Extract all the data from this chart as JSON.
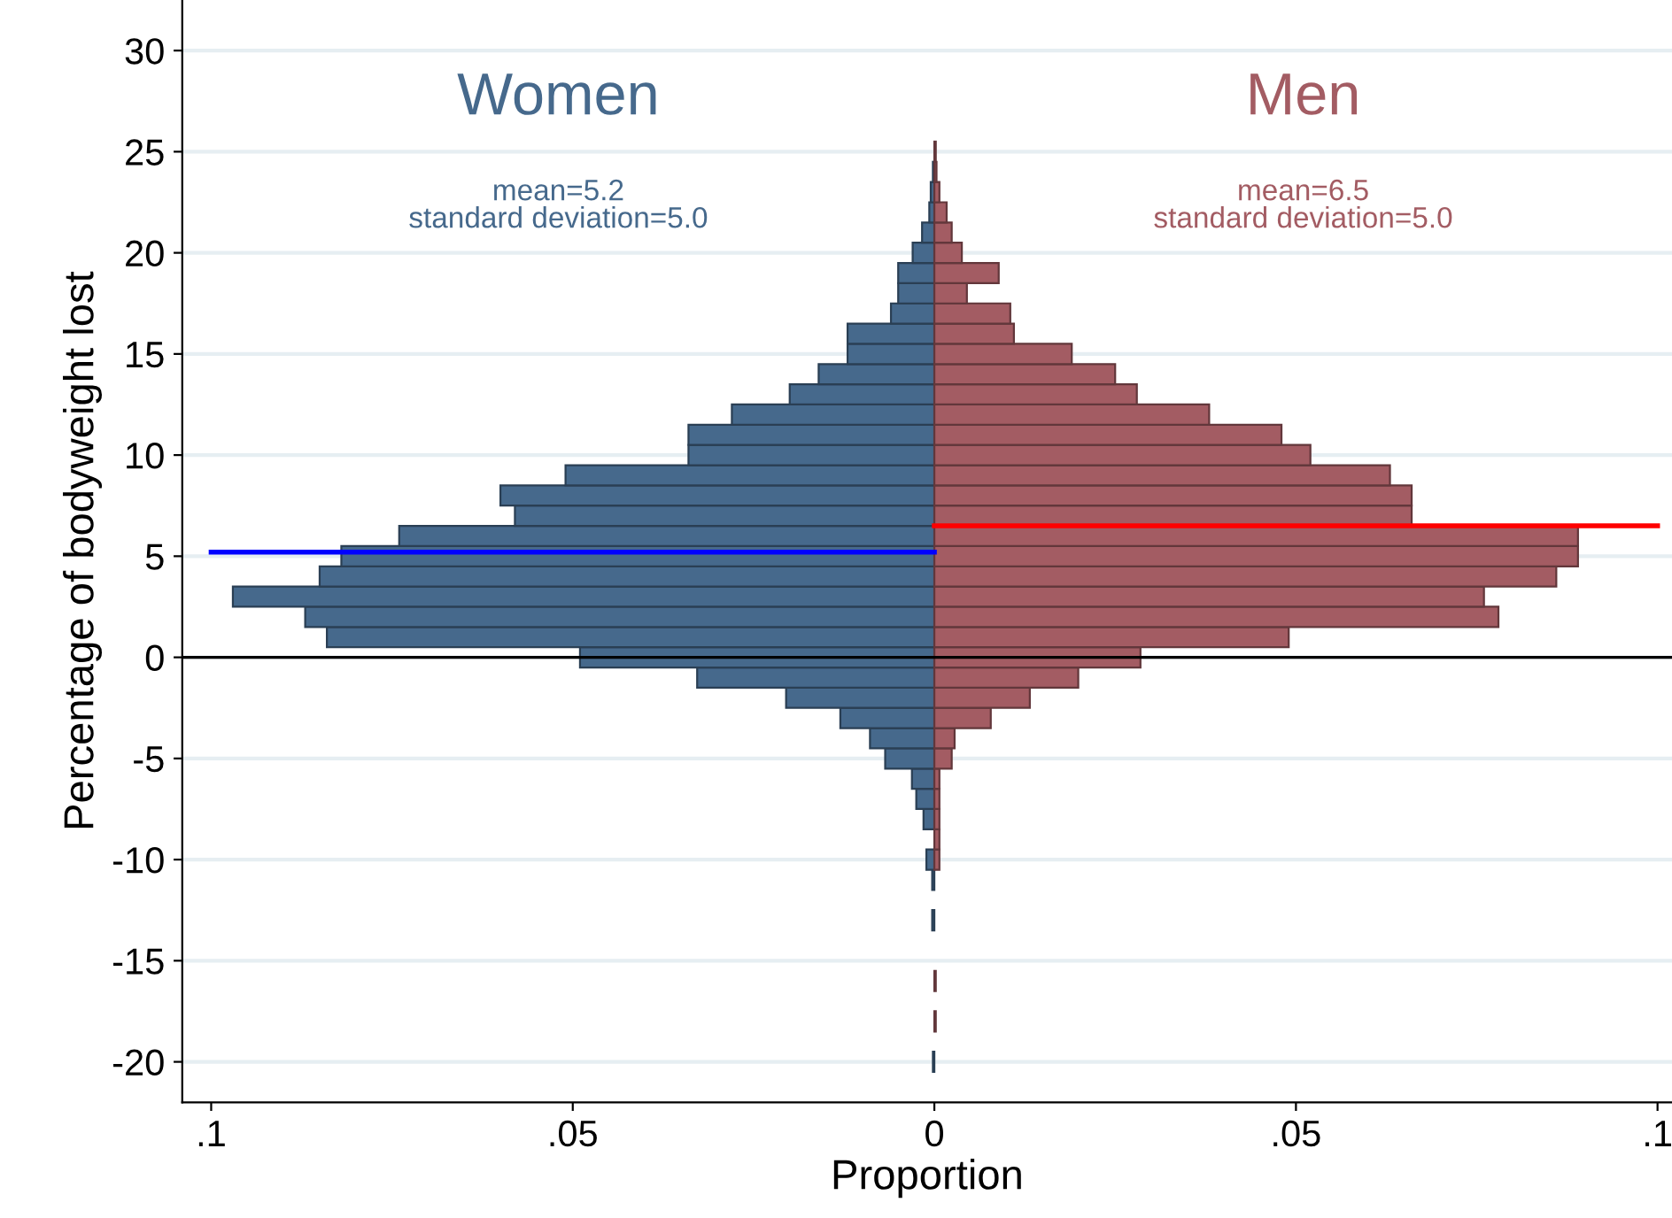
{
  "chart_data": {
    "type": "bar",
    "orientation": "horizontal",
    "xlabel": "Proportion",
    "ylabel": "Percentage of bodyweight lost",
    "x": [
      -20,
      -19,
      -18,
      -17,
      -16,
      -15,
      -14,
      -13,
      -12,
      -11,
      -10,
      -9,
      -8,
      -7,
      -6,
      -5,
      -4,
      -3,
      -2,
      -1,
      0,
      1,
      2,
      3,
      4,
      5,
      6,
      7,
      8,
      9,
      10,
      11,
      12,
      13,
      14,
      15,
      16,
      17,
      18,
      19,
      20,
      21,
      22,
      23,
      24,
      25
    ],
    "series": [
      {
        "name": "Women",
        "color": "#46698c",
        "values": [
          -0.0002,
          null,
          null,
          null,
          null,
          null,
          null,
          -0.0003,
          null,
          -0.0003,
          -0.0011,
          null,
          -0.0015,
          -0.0025,
          -0.0031,
          -0.0068,
          -0.0089,
          -0.013,
          -0.0205,
          -0.0328,
          -0.049,
          -0.084,
          -0.087,
          -0.097,
          -0.085,
          -0.082,
          -0.074,
          -0.058,
          -0.06,
          -0.051,
          -0.034,
          -0.034,
          -0.028,
          -0.02,
          -0.016,
          -0.012,
          -0.012,
          -0.006,
          -0.005,
          -0.005,
          -0.003,
          -0.0017,
          -0.0007,
          -0.0005,
          -0.0002,
          null
        ]
      },
      {
        "name": "Men",
        "color": "#a35c63",
        "values": [
          null,
          null,
          0.0002,
          null,
          0.0002,
          null,
          null,
          null,
          null,
          null,
          0.0007,
          0.0007,
          0.0007,
          0.0007,
          0.0007,
          0.0024,
          0.0028,
          0.0078,
          0.0132,
          0.0199,
          0.0285,
          0.049,
          0.078,
          0.076,
          0.086,
          0.089,
          0.089,
          0.066,
          0.066,
          0.063,
          0.052,
          0.048,
          0.038,
          0.028,
          0.025,
          0.019,
          0.011,
          0.0105,
          0.0045,
          0.0089,
          0.0038,
          0.0024,
          0.0017,
          0.0007,
          0.0003,
          0.0002
        ]
      }
    ],
    "annotations": [
      "mean=5.2\nstandard deviation=5.0",
      "mean=6.5\nstandard deviation=5.0"
    ],
    "ref_lines": [
      {
        "axis": "y",
        "value": 5.2,
        "color": "#0000ff"
      },
      {
        "axis": "y",
        "value": 6.5,
        "color": "#ff0000"
      },
      {
        "axis": "y",
        "value": 0,
        "color": "#000000"
      }
    ],
    "xlim": [
      -0.104,
      0.102
    ],
    "ylim": [
      -22,
      32.5
    ],
    "xticks": [
      {
        "value": -0.1,
        "label": ".1"
      },
      {
        "value": -0.05,
        "label": ".05"
      },
      0,
      {
        "value": 0.05,
        "label": ".05"
      },
      {
        "value": 0.1,
        "label": ".1"
      }
    ],
    "yticks": [
      -20,
      -15,
      -10,
      -5,
      0,
      5,
      10,
      15,
      20,
      25,
      30
    ],
    "grid": "y",
    "legend": false,
    "stacked": true
  }
}
